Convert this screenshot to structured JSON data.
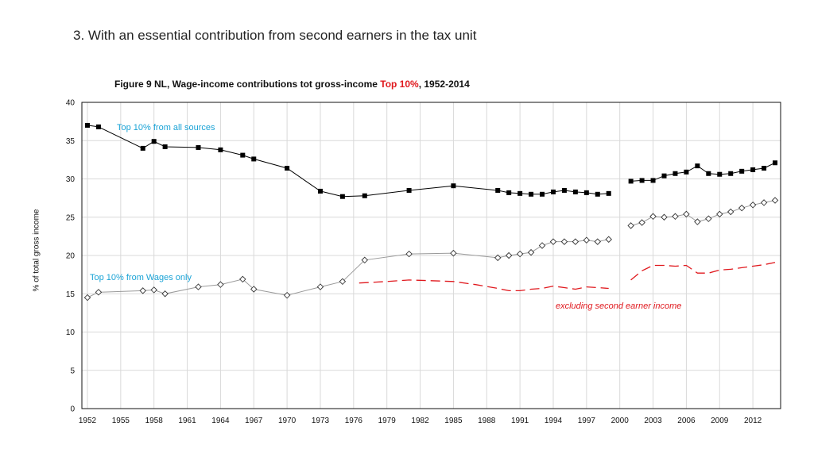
{
  "slide": {
    "title": "3. With an essential contribution from second earners in the tax unit"
  },
  "figure": {
    "title_prefix": "Figure 9  NL, Wage-income contributions tot gross-income ",
    "title_highlight": "Top 10%",
    "title_suffix": ", 1952-2014",
    "highlight_color": "#e0191e"
  },
  "chart_data": {
    "type": "line",
    "ylabel": "% of total gross income",
    "xlabel": "",
    "ylim": [
      0,
      40
    ],
    "xlim": [
      1951.5,
      2014.5
    ],
    "y_ticks": [
      0,
      5,
      10,
      15,
      20,
      25,
      30,
      35,
      40
    ],
    "x_ticks": [
      1952,
      1955,
      1958,
      1961,
      1964,
      1967,
      1970,
      1973,
      1976,
      1979,
      1982,
      1985,
      1988,
      1991,
      1994,
      1997,
      2000,
      2003,
      2006,
      2009,
      2012
    ],
    "grid": true,
    "series": [
      {
        "name": "Top 10% from all sources",
        "label": "Top 10% from all sources",
        "color": "#000000",
        "label_color": "#1aa3d6",
        "marker": "square",
        "segments": [
          [
            [
              1952,
              37.0
            ],
            [
              1953,
              36.8
            ],
            [
              1957,
              34.0
            ],
            [
              1958,
              34.9
            ],
            [
              1959,
              34.2
            ],
            [
              1962,
              34.1
            ],
            [
              1964,
              33.8
            ],
            [
              1966,
              33.1
            ],
            [
              1967,
              32.6
            ],
            [
              1970,
              31.4
            ],
            [
              1973,
              28.4
            ],
            [
              1975,
              27.7
            ],
            [
              1977,
              27.8
            ],
            [
              1981,
              28.5
            ],
            [
              1985,
              29.1
            ],
            [
              1989,
              28.5
            ],
            [
              1990,
              28.2
            ],
            [
              1991,
              28.1
            ],
            [
              1992,
              28.0
            ],
            [
              1993,
              28.0
            ],
            [
              1994,
              28.3
            ],
            [
              1995,
              28.5
            ],
            [
              1996,
              28.3
            ],
            [
              1997,
              28.2
            ],
            [
              1998,
              28.0
            ],
            [
              1999,
              28.1
            ]
          ],
          [
            [
              2001,
              29.7
            ],
            [
              2002,
              29.8
            ],
            [
              2003,
              29.8
            ],
            [
              2004,
              30.4
            ],
            [
              2005,
              30.7
            ],
            [
              2006,
              30.9
            ],
            [
              2007,
              31.7
            ],
            [
              2008,
              30.7
            ],
            [
              2009,
              30.6
            ],
            [
              2010,
              30.7
            ],
            [
              2011,
              31.0
            ],
            [
              2012,
              31.2
            ],
            [
              2013,
              31.4
            ],
            [
              2014,
              32.1
            ]
          ]
        ]
      },
      {
        "name": "Top 10% from Wages only",
        "label": "Top 10% from Wages only",
        "color": "#9a9a9a",
        "label_color": "#1aa3d6",
        "marker": "diamond",
        "segments": [
          [
            [
              1952,
              14.5
            ],
            [
              1953,
              15.2
            ],
            [
              1957,
              15.4
            ],
            [
              1958,
              15.5
            ],
            [
              1959,
              15.0
            ],
            [
              1962,
              15.9
            ],
            [
              1964,
              16.2
            ],
            [
              1966,
              16.9
            ],
            [
              1967,
              15.6
            ],
            [
              1970,
              14.8
            ],
            [
              1973,
              15.9
            ],
            [
              1975,
              16.6
            ],
            [
              1977,
              19.4
            ],
            [
              1981,
              20.2
            ],
            [
              1985,
              20.3
            ],
            [
              1989,
              19.7
            ],
            [
              1990,
              20.0
            ],
            [
              1991,
              20.2
            ],
            [
              1992,
              20.4
            ],
            [
              1993,
              21.3
            ],
            [
              1994,
              21.8
            ],
            [
              1995,
              21.8
            ],
            [
              1996,
              21.8
            ],
            [
              1997,
              22.0
            ],
            [
              1998,
              21.8
            ],
            [
              1999,
              22.1
            ]
          ],
          [
            [
              2001,
              23.9
            ],
            [
              2002,
              24.3
            ],
            [
              2003,
              25.1
            ],
            [
              2004,
              25.0
            ],
            [
              2005,
              25.1
            ],
            [
              2006,
              25.4
            ],
            [
              2007,
              24.4
            ],
            [
              2008,
              24.8
            ],
            [
              2009,
              25.4
            ],
            [
              2010,
              25.7
            ],
            [
              2011,
              26.2
            ],
            [
              2012,
              26.6
            ],
            [
              2013,
              26.9
            ],
            [
              2014,
              27.2
            ]
          ]
        ]
      },
      {
        "name": "excluding second earner income",
        "label": "excluding second earner income",
        "color": "#e0191e",
        "label_color": "#e0191e",
        "marker": "none",
        "dashed": true,
        "segments": [
          [
            [
              1976.5,
              16.4
            ],
            [
              1979,
              16.6
            ],
            [
              1981,
              16.8
            ],
            [
              1983,
              16.7
            ],
            [
              1985,
              16.6
            ],
            [
              1987,
              16.2
            ],
            [
              1989,
              15.7
            ],
            [
              1990,
              15.4
            ],
            [
              1991,
              15.4
            ],
            [
              1992,
              15.6
            ],
            [
              1993,
              15.7
            ],
            [
              1994,
              16.0
            ],
            [
              1995,
              15.8
            ],
            [
              1996,
              15.6
            ],
            [
              1997,
              15.9
            ],
            [
              1998,
              15.8
            ],
            [
              1999,
              15.7
            ]
          ],
          [
            [
              2001,
              16.8
            ],
            [
              2002,
              18.0
            ],
            [
              2003,
              18.7
            ],
            [
              2004,
              18.7
            ],
            [
              2005,
              18.6
            ],
            [
              2006,
              18.7
            ],
            [
              2007,
              17.7
            ],
            [
              2008,
              17.7
            ],
            [
              2009,
              18.1
            ],
            [
              2010,
              18.2
            ],
            [
              2011,
              18.4
            ],
            [
              2012,
              18.6
            ],
            [
              2013,
              18.8
            ],
            [
              2014,
              19.1
            ]
          ]
        ]
      }
    ]
  }
}
